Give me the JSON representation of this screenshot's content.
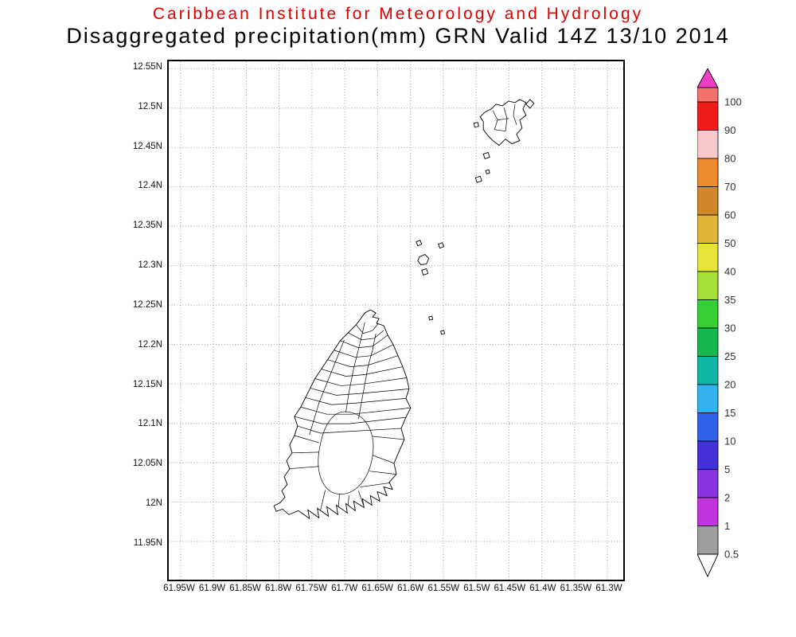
{
  "header": {
    "line1": "Caribbean Institute for Meteorology and Hydrology",
    "line2": "Disaggregated precipitation(mm) GRN Valid 14Z 13/10 2014",
    "line1_color": "#dd0000",
    "line2_color": "#000000"
  },
  "map": {
    "region": "Grenada and the Grenadines",
    "lat_labels": [
      "12.55N",
      "12.5N",
      "12.45N",
      "12.4N",
      "12.35N",
      "12.3N",
      "12.25N",
      "12.2N",
      "12.15N",
      "12.1N",
      "12.05N",
      "12N",
      "11.95N"
    ],
    "lon_labels": [
      "61.95W",
      "61.9W",
      "61.85W",
      "61.8W",
      "61.75W",
      "61.7W",
      "61.65W",
      "61.6W",
      "61.55W",
      "61.5W",
      "61.45W",
      "61.4W",
      "61.35W",
      "61.3W"
    ],
    "grid_style": "dotted",
    "grid_color": "#9a9a9a"
  },
  "colorbar": {
    "units": "mm",
    "top_arrow_color": "#ee3ec8",
    "bottom_arrow_color": "#ffffff",
    "label_color": "#333333",
    "segments": [
      {
        "color": "#f3726c",
        "label": "100"
      },
      {
        "color": "#ef1c1a",
        "label": "90"
      },
      {
        "color": "#f8c8cc",
        "label": "80"
      },
      {
        "color": "#f08a2e",
        "label": "70"
      },
      {
        "color": "#d0872a",
        "label": "60"
      },
      {
        "color": "#e0b638",
        "label": "50"
      },
      {
        "color": "#e6e33a",
        "label": "40"
      },
      {
        "color": "#a8e03a",
        "label": "35"
      },
      {
        "color": "#35cf35",
        "label": "30"
      },
      {
        "color": "#16b84e",
        "label": "25"
      },
      {
        "color": "#0fb6a6",
        "label": "20"
      },
      {
        "color": "#33b4ec",
        "label": "15"
      },
      {
        "color": "#2f62e8",
        "label": "10"
      },
      {
        "color": "#4430d8",
        "label": "5"
      },
      {
        "color": "#8832e0",
        "label": "2"
      },
      {
        "color": "#c234e0",
        "label": "1"
      },
      {
        "color": "#9e9e9e",
        "label": "0.5"
      }
    ]
  }
}
